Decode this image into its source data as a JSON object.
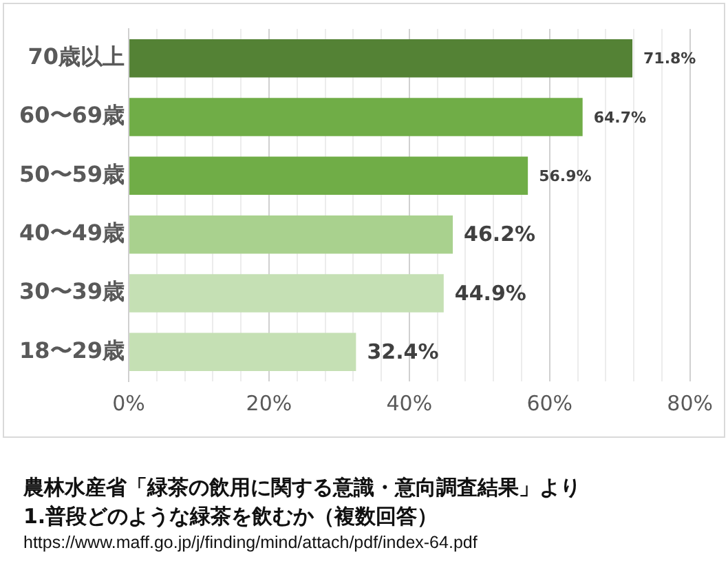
{
  "chart_data": {
    "type": "bar",
    "orientation": "horizontal",
    "categories": [
      "70歳以上",
      "60〜69歳",
      "50〜59歳",
      "40〜49歳",
      "30〜39歳",
      "18〜29歳"
    ],
    "values": [
      71.8,
      64.7,
      56.9,
      46.2,
      44.9,
      32.4
    ],
    "colors": [
      "#548235",
      "#70ad47",
      "#70ad47",
      "#a9d18e",
      "#c5e0b4",
      "#c5e0b4"
    ],
    "value_labels": [
      "71.8%",
      "64.7%",
      "56.9%",
      "46.2%",
      "44.9%",
      "32.4%"
    ],
    "xlim": [
      0,
      80
    ],
    "xticks": [
      {
        "value": 0,
        "label": "0%"
      },
      {
        "value": 4,
        "label": null
      },
      {
        "value": 8,
        "label": null
      },
      {
        "value": 12,
        "label": null
      },
      {
        "value": 16,
        "label": null
      },
      {
        "value": 20,
        "label": "20%"
      },
      {
        "value": 24,
        "label": null
      },
      {
        "value": 28,
        "label": null
      },
      {
        "value": 32,
        "label": null
      },
      {
        "value": 36,
        "label": null
      },
      {
        "value": 40,
        "label": "40%"
      },
      {
        "value": 44,
        "label": null
      },
      {
        "value": 48,
        "label": null
      },
      {
        "value": 52,
        "label": null
      },
      {
        "value": 56,
        "label": null
      },
      {
        "value": 60,
        "label": "60%"
      },
      {
        "value": 64,
        "label": null
      },
      {
        "value": 68,
        "label": null
      },
      {
        "value": 72,
        "label": null
      },
      {
        "value": 76,
        "label": null
      },
      {
        "value": 80,
        "label": "80%"
      }
    ],
    "grid": "x",
    "legend": false,
    "annotations": [
      "農林水産省「緑茶の飲用に関する意識・意向調査結果」より",
      "1.普段どのような緑茶を飲むか（複数回答）",
      "https://www.maff.go.jp/j/finding/mind/attach/pdf/index-64.pdf"
    ]
  }
}
